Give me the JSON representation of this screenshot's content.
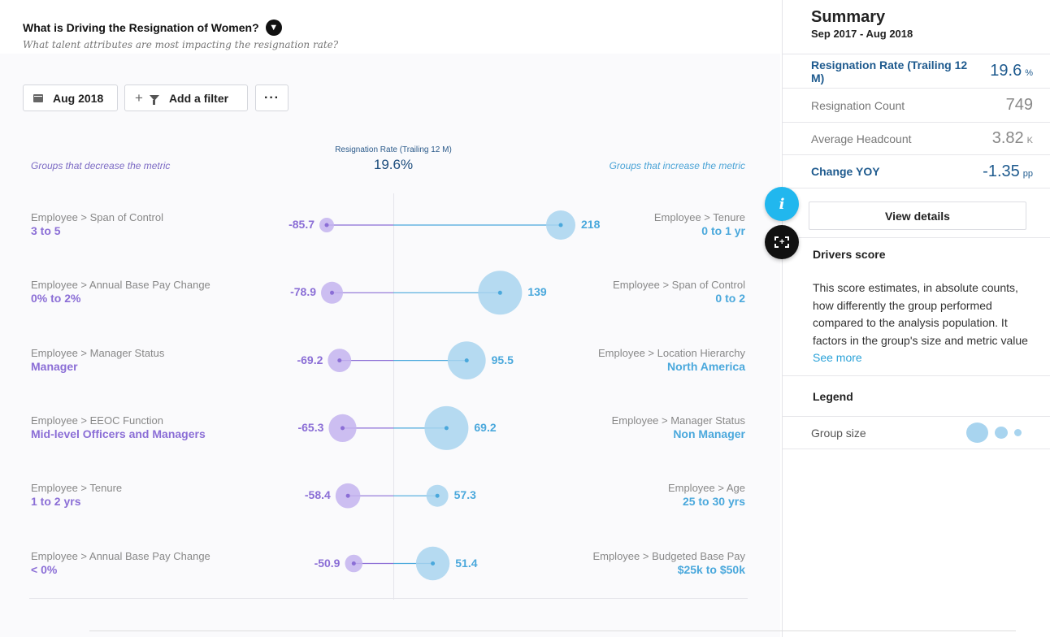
{
  "header": {
    "title": "What is Driving the Resignation of Women?",
    "subtitle": "What talent attributes are most impacting the resignation rate?"
  },
  "toolbar": {
    "date_label": "Aug 2018",
    "filter_label": "Add a filter",
    "more_label": "···"
  },
  "chart_data": {
    "type": "scatter",
    "title": "Resignation Rate (Trailing 12 M)",
    "center_value": "19.6%",
    "left_hint": "Groups that decrease the metric",
    "right_hint": "Groups that increase the metric",
    "rows": [
      {
        "left_category": "Employee > Span of Control",
        "left_group": "3 to 5",
        "left_value": -85.7,
        "left_label": "-85.7",
        "left_size": 1,
        "right_category": "Employee > Tenure",
        "right_group": "0 to 1 yr",
        "right_value": 218,
        "right_label": "218",
        "right_size": 2
      },
      {
        "left_category": "Employee > Annual Base Pay Change",
        "left_group": "0% to 2%",
        "left_value": -78.9,
        "left_label": "-78.9",
        "left_size": 1.5,
        "right_category": "Employee > Span of Control",
        "right_group": "0 to 2",
        "right_value": 139,
        "right_label": "139",
        "right_size": 3
      },
      {
        "left_category": "Employee > Manager Status",
        "left_group": "Manager",
        "left_value": -69.2,
        "left_label": "-69.2",
        "left_size": 1.6,
        "right_category": "Employee > Location Hierarchy",
        "right_group": "North America",
        "right_value": 95.5,
        "right_label": "95.5",
        "right_size": 2.6
      },
      {
        "left_category": "Employee > EEOC Function",
        "left_group": "Mid-level Officers and Managers",
        "left_value": -65.3,
        "left_label": "-65.3",
        "left_size": 1.9,
        "right_category": "Employee > Manager Status",
        "right_group": "Non Manager",
        "right_value": 69.2,
        "right_label": "69.2",
        "right_size": 3
      },
      {
        "left_category": "Employee > Tenure",
        "left_group": "1 to 2 yrs",
        "left_value": -58.4,
        "left_label": "-58.4",
        "left_size": 1.7,
        "right_category": "Employee > Age",
        "right_group": "25 to 30 yrs",
        "right_value": 57.3,
        "right_label": "57.3",
        "right_size": 1.5
      },
      {
        "left_category": "Employee > Annual Base Pay Change",
        "left_group": "< 0%",
        "left_value": -50.9,
        "left_label": "-50.9",
        "left_size": 1.2,
        "right_category": "Employee > Budgeted Base Pay",
        "right_group": "$25k to $50k",
        "right_value": 51.4,
        "right_label": "51.4",
        "right_size": 2.3
      }
    ]
  },
  "summary": {
    "title": "Summary",
    "range": "Sep 2017 - Aug 2018",
    "rate_label": "Resignation Rate (Trailing 12 M)",
    "rate_value": "19.6",
    "rate_unit": "%",
    "count_label": "Resignation Count",
    "count_value": "749",
    "headcount_label": "Average Headcount",
    "headcount_value": "3.82",
    "headcount_unit": "K",
    "yoy_label": "Change YOY",
    "yoy_value": "-1.35",
    "yoy_unit": "pp",
    "view_details": "View details",
    "drivers_title": "Drivers score",
    "drivers_text": "This score estimates, in absolute counts, how differently the group performed compared to the analysis population. It factors in the group's size and metric value",
    "see_more": "See more",
    "legend_title": "Legend",
    "legend_group_size": "Group size"
  },
  "floating": {
    "info_label": "i"
  },
  "colors": {
    "negative": "#8b6ed6",
    "negative_fill": "#c3b3ee",
    "positive": "#4aa8dc",
    "positive_fill": "#a8d4ef"
  }
}
